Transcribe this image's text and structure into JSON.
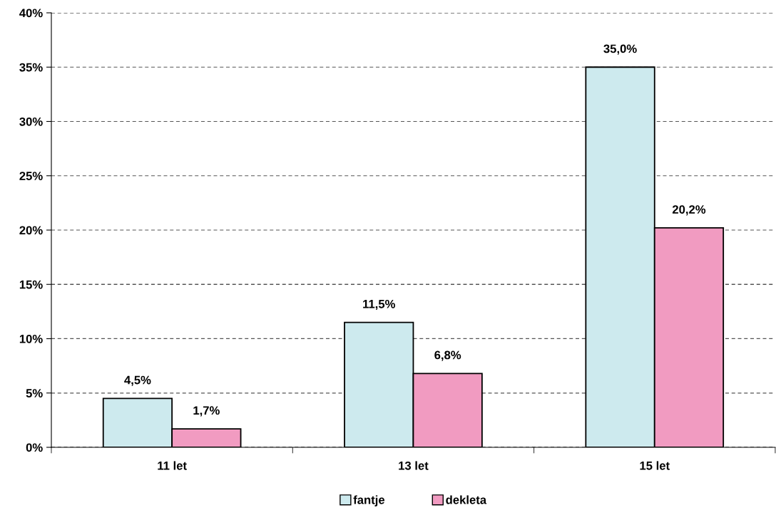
{
  "chart_data": {
    "type": "bar",
    "categories": [
      "11 let",
      "13 let",
      "15 let"
    ],
    "series": [
      {
        "name": "fantje",
        "color": "#cdeaee",
        "values": [
          4.5,
          11.5,
          35.0
        ],
        "value_labels": [
          "4,5%",
          "11,5%",
          "35,0%"
        ]
      },
      {
        "name": "dekleta",
        "color": "#f19bc1",
        "values": [
          1.7,
          6.8,
          20.2
        ],
        "value_labels": [
          "1,7%",
          "6,8%",
          "20,2%"
        ]
      }
    ],
    "ylim": [
      0,
      40
    ],
    "yticks": [
      {
        "value": 0,
        "label": "0%"
      },
      {
        "value": 5,
        "label": "5%"
      },
      {
        "value": 10,
        "label": "10%"
      },
      {
        "value": 15,
        "label": "15%"
      },
      {
        "value": 20,
        "label": "20%"
      },
      {
        "value": 25,
        "label": "25%"
      },
      {
        "value": 30,
        "label": "30%"
      },
      {
        "value": 35,
        "label": "35%"
      },
      {
        "value": 40,
        "label": "40%"
      }
    ],
    "grid": "y",
    "legend": "bottom"
  }
}
